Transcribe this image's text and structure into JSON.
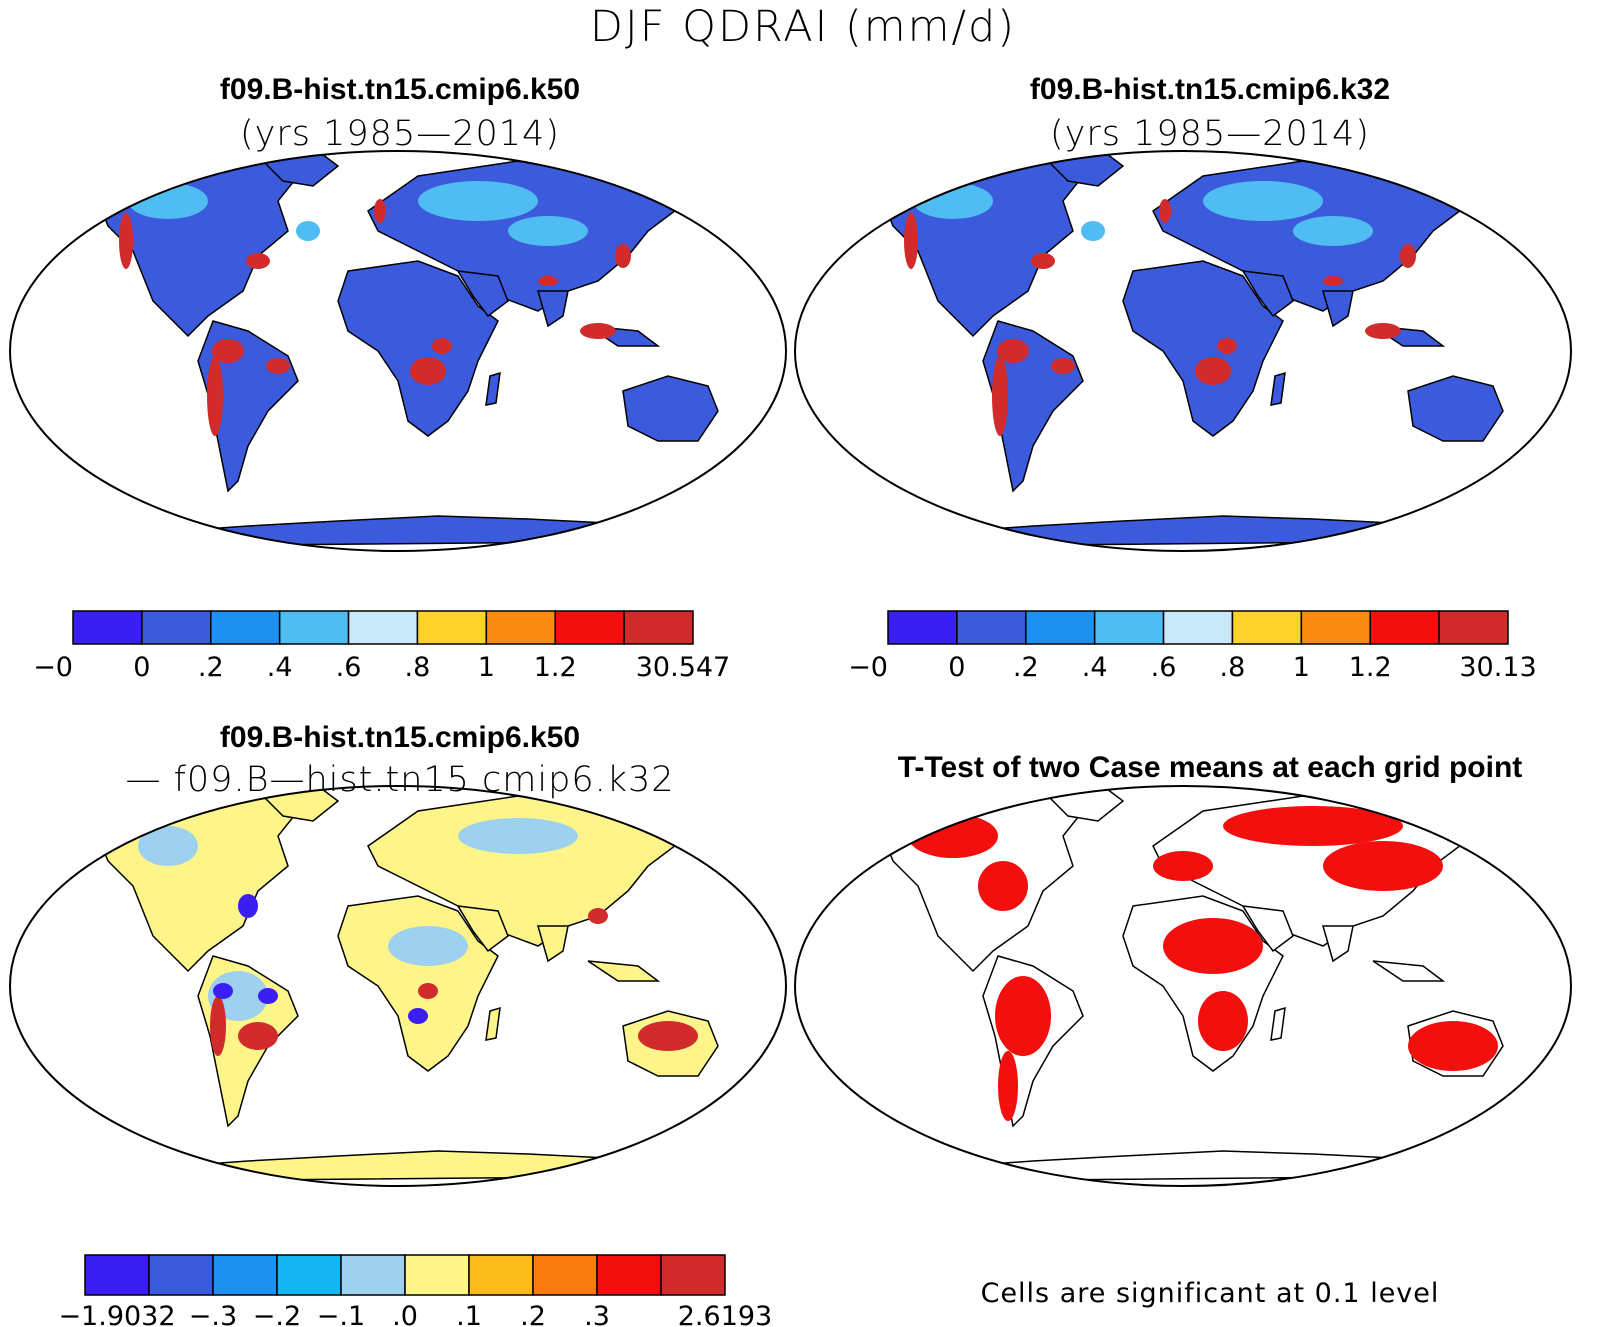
{
  "figure": {
    "title": "DJF QDRAI (mm/d)"
  },
  "panels": {
    "top_left": {
      "title": "f09.B-hist.tn15.cmip6.k50",
      "subtitle": "(yrs 1985—2014)",
      "colorbar": {
        "colors": [
          "#3b1ef2",
          "#3c5bdc",
          "#1e90ef",
          "#50bdf2",
          "#c9e9f8",
          "#fdd22b",
          "#f98a12",
          "#f40f0f",
          "#d22b2b"
        ],
        "labels": [
          "−0",
          "0",
          ".2",
          ".4",
          ".6",
          ".8",
          "1",
          "1.2",
          "30.547"
        ]
      }
    },
    "top_right": {
      "title": "f09.B-hist.tn15.cmip6.k32",
      "subtitle": "(yrs 1985—2014)",
      "colorbar": {
        "colors": [
          "#3b1ef2",
          "#3c5bdc",
          "#1e90ef",
          "#50bdf2",
          "#c9e9f8",
          "#fdd22b",
          "#f98a12",
          "#f40f0f",
          "#d22b2b"
        ],
        "labels": [
          "−0",
          "0",
          ".2",
          ".4",
          ".6",
          ".8",
          "1",
          "1.2",
          "30.13"
        ]
      }
    },
    "bottom_left": {
      "title": "f09.B-hist.tn15.cmip6.k50",
      "subtitle": "— f09.B—hist.tn15.cmip6.k32",
      "colorbar": {
        "colors": [
          "#3b1ef2",
          "#3c5bdc",
          "#1e90ef",
          "#15b7f2",
          "#9dd1ef",
          "#fdf58a",
          "#fdbb1a",
          "#f97a0f",
          "#f40f0f",
          "#d22b2b"
        ],
        "labels": [
          "−1.9032",
          "−.3",
          "−.2",
          "−.1",
          ".0",
          ".1",
          ".2",
          ".3",
          "2.6193"
        ]
      }
    },
    "bottom_right": {
      "title": "T-Test of two Case means at each grid point",
      "footnote": "Cells are significant at 0.1 level"
    }
  },
  "map_style": {
    "land_base_mean": "#3c5bdc",
    "land_base_diff": "#fdf58a",
    "high_value": "#d22b2b",
    "significant": "#f40f0f",
    "outline": "#000000"
  }
}
